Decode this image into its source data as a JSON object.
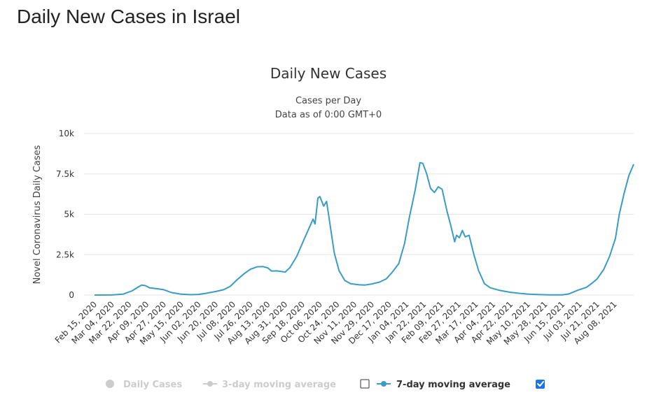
{
  "page": {
    "heading": "Daily New Cases in Israel"
  },
  "chart_data": {
    "type": "line",
    "title": "Daily New Cases",
    "subtitle_line1": "Cases per Day",
    "subtitle_line2": "Data as of 0:00 GMT+0",
    "ylabel": "Novel Coronavirus Daily Cases",
    "xlabel": "",
    "ylim": [
      0,
      10000
    ],
    "yticks": [
      {
        "value": 0,
        "label": "0"
      },
      {
        "value": 2500,
        "label": "2.5k"
      },
      {
        "value": 5000,
        "label": "5k"
      },
      {
        "value": 7500,
        "label": "7.5k"
      },
      {
        "value": 10000,
        "label": "10k"
      }
    ],
    "xlim": [
      "2020-02-15",
      "2021-08-28"
    ],
    "xticks": [
      "Feb 15, 2020",
      "Mar 04, 2020",
      "Mar 22, 2020",
      "Apr 09, 2020",
      "Apr 27, 2020",
      "May 15, 2020",
      "Jun 02, 2020",
      "Jun 20, 2020",
      "Jul 08, 2020",
      "Jul 26, 2020",
      "Aug 13, 2020",
      "Aug 31, 2020",
      "Sep 18, 2020",
      "Oct 06, 2020",
      "Oct 24, 2020",
      "Nov 11, 2020",
      "Nov 29, 2020",
      "Dec 17, 2020",
      "Jan 04, 2021",
      "Jan 22, 2021",
      "Feb 09, 2021",
      "Feb 27, 2021",
      "Mar 17, 2021",
      "Apr 04, 2021",
      "Apr 22, 2021",
      "May 10, 2021",
      "May 28, 2021",
      "Jun 15, 2021",
      "Jul 03, 2021",
      "Jul 21, 2021",
      "Aug 08, 2021"
    ],
    "grid": true,
    "legend_position": "bottom",
    "series": [
      {
        "name": "7-day moving average",
        "color": "#3a9cc4",
        "points": [
          [
            "2020-02-15",
            0
          ],
          [
            "2020-03-04",
            5
          ],
          [
            "2020-03-16",
            60
          ],
          [
            "2020-03-25",
            260
          ],
          [
            "2020-04-01",
            520
          ],
          [
            "2020-04-04",
            620
          ],
          [
            "2020-04-08",
            580
          ],
          [
            "2020-04-12",
            450
          ],
          [
            "2020-04-20",
            390
          ],
          [
            "2020-04-27",
            330
          ],
          [
            "2020-05-05",
            150
          ],
          [
            "2020-05-15",
            50
          ],
          [
            "2020-05-25",
            20
          ],
          [
            "2020-06-02",
            40
          ],
          [
            "2020-06-10",
            110
          ],
          [
            "2020-06-20",
            220
          ],
          [
            "2020-06-28",
            330
          ],
          [
            "2020-07-05",
            540
          ],
          [
            "2020-07-12",
            950
          ],
          [
            "2020-07-20",
            1350
          ],
          [
            "2020-07-26",
            1600
          ],
          [
            "2020-08-02",
            1750
          ],
          [
            "2020-08-08",
            1760
          ],
          [
            "2020-08-13",
            1680
          ],
          [
            "2020-08-17",
            1480
          ],
          [
            "2020-08-22",
            1500
          ],
          [
            "2020-08-28",
            1450
          ],
          [
            "2020-08-31",
            1420
          ],
          [
            "2020-09-05",
            1700
          ],
          [
            "2020-09-12",
            2400
          ],
          [
            "2020-09-20",
            3500
          ],
          [
            "2020-09-26",
            4300
          ],
          [
            "2020-09-29",
            4700
          ],
          [
            "2020-10-01",
            4400
          ],
          [
            "2020-10-04",
            6000
          ],
          [
            "2020-10-06",
            6100
          ],
          [
            "2020-10-10",
            5500
          ],
          [
            "2020-10-13",
            5800
          ],
          [
            "2020-10-17",
            4200
          ],
          [
            "2020-10-21",
            2600
          ],
          [
            "2020-10-26",
            1500
          ],
          [
            "2020-11-01",
            900
          ],
          [
            "2020-11-07",
            700
          ],
          [
            "2020-11-15",
            640
          ],
          [
            "2020-11-22",
            620
          ],
          [
            "2020-11-29",
            690
          ],
          [
            "2020-12-07",
            800
          ],
          [
            "2020-12-14",
            1000
          ],
          [
            "2020-12-20",
            1400
          ],
          [
            "2020-12-27",
            1950
          ],
          [
            "2021-01-02",
            3200
          ],
          [
            "2021-01-07",
            4800
          ],
          [
            "2021-01-13",
            6500
          ],
          [
            "2021-01-18",
            8200
          ],
          [
            "2021-01-21",
            8150
          ],
          [
            "2021-01-25",
            7500
          ],
          [
            "2021-01-29",
            6600
          ],
          [
            "2021-02-02",
            6350
          ],
          [
            "2021-02-06",
            6700
          ],
          [
            "2021-02-10",
            6550
          ],
          [
            "2021-02-15",
            5200
          ],
          [
            "2021-02-19",
            4300
          ],
          [
            "2021-02-23",
            3300
          ],
          [
            "2021-02-25",
            3700
          ],
          [
            "2021-02-28",
            3550
          ],
          [
            "2021-03-03",
            4000
          ],
          [
            "2021-03-06",
            3600
          ],
          [
            "2021-03-10",
            3700
          ],
          [
            "2021-03-15",
            2500
          ],
          [
            "2021-03-20",
            1500
          ],
          [
            "2021-03-26",
            700
          ],
          [
            "2021-04-01",
            450
          ],
          [
            "2021-04-10",
            300
          ],
          [
            "2021-04-22",
            170
          ],
          [
            "2021-05-01",
            110
          ],
          [
            "2021-05-10",
            60
          ],
          [
            "2021-05-20",
            30
          ],
          [
            "2021-06-01",
            10
          ],
          [
            "2021-06-15",
            15
          ],
          [
            "2021-06-22",
            80
          ],
          [
            "2021-07-01",
            300
          ],
          [
            "2021-07-10",
            480
          ],
          [
            "2021-07-16",
            750
          ],
          [
            "2021-07-21",
            1000
          ],
          [
            "2021-07-28",
            1600
          ],
          [
            "2021-08-03",
            2400
          ],
          [
            "2021-08-09",
            3500
          ],
          [
            "2021-08-13",
            5000
          ],
          [
            "2021-08-18",
            6300
          ],
          [
            "2021-08-23",
            7400
          ],
          [
            "2021-08-28",
            8100
          ]
        ]
      }
    ]
  },
  "legend": {
    "items": [
      {
        "label": "Daily Cases",
        "color": "#cccccc"
      },
      {
        "label": "3-day moving average",
        "color": "#cccccc"
      },
      {
        "label": "7-day moving average",
        "color": "#3a9cc4"
      }
    ],
    "checkbox_3day_checked": false,
    "checkbox_7day_checked": true,
    "checkbox_accent": "#1a73e8"
  }
}
